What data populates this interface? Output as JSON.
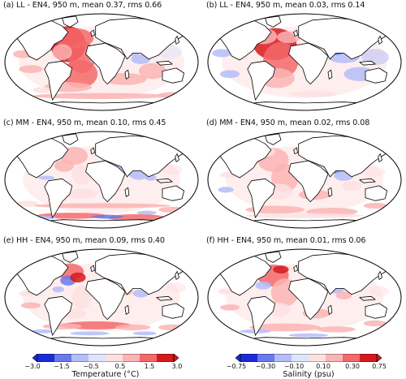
{
  "panels": [
    {
      "title": "(a) LL - EN4, 950 m, mean 0.37, rms 0.66",
      "variable": "temperature"
    },
    {
      "title": "(b) LL - EN4, 950 m, mean 0.03, rms 0.14",
      "variable": "salinity"
    },
    {
      "title": "(c) MM - EN4, 950 m, mean 0.10, rms 0.45",
      "variable": "temperature"
    },
    {
      "title": "(d) MM - EN4, 950 m, mean 0.02, rms 0.08",
      "variable": "salinity"
    },
    {
      "title": "(e) HH - EN4, 950 m, mean 0.09, rms 0.40",
      "variable": "temperature"
    },
    {
      "title": "(f) HH - EN4, 950 m, mean 0.01, rms 0.06",
      "variable": "salinity"
    }
  ],
  "colorbars": {
    "temperature": {
      "label": "Temperature (°C)",
      "ticks": [
        "−3.0",
        "−1.5",
        "−0.5",
        "0.5",
        "1.5",
        "3.0"
      ]
    },
    "salinity": {
      "label": "Salinity (psu)",
      "ticks": [
        "−0.75",
        "−0.30",
        "−0.10",
        "0.10",
        "0.30",
        "0.75"
      ]
    }
  },
  "colors": {
    "strong_red": "#d7191c",
    "red": "#f4686a",
    "light_red": "#fbb4b4",
    "faint_red": "#fde0e0",
    "faint_blue": "#e0e4fb",
    "light_blue": "#b4bdf7",
    "blue": "#6a79ec",
    "strong_blue": "#1a2bd8"
  }
}
